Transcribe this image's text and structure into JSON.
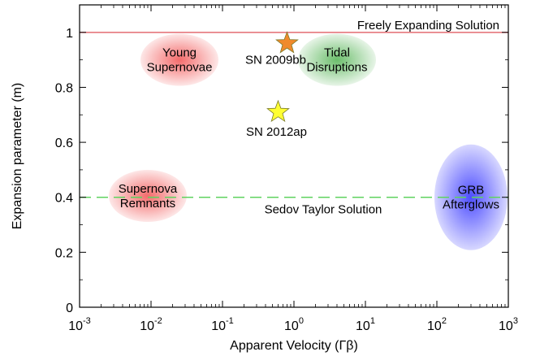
{
  "chart_data": {
    "type": "scatter",
    "xscale": "log",
    "xlim": [
      0.001,
      1000
    ],
    "ylim": [
      0,
      1.1
    ],
    "xlabel": "Apparent Velocity (Γβ)",
    "ylabel": "Expansion parameter (m)",
    "grid": false,
    "x_ticks": [
      {
        "base": "10",
        "exp": "-3",
        "value": 0.001
      },
      {
        "base": "10",
        "exp": "-2",
        "value": 0.01
      },
      {
        "base": "10",
        "exp": "-1",
        "value": 0.1
      },
      {
        "base": "10",
        "exp": "0",
        "value": 1
      },
      {
        "base": "10",
        "exp": "1",
        "value": 10
      },
      {
        "base": "10",
        "exp": "2",
        "value": 100
      },
      {
        "base": "10",
        "exp": "3",
        "value": 1000
      }
    ],
    "y_ticks": [
      "0",
      "0.2",
      "0.4",
      "0.6",
      "0.8",
      "1"
    ],
    "lines": [
      {
        "label": "Freely Expanding Solution",
        "y": 1.0,
        "style": "solid",
        "color": "#e36b72"
      },
      {
        "label": "Sedov Taylor Solution",
        "y": 0.4,
        "style": "dashed",
        "color": "#5fd35f"
      }
    ],
    "points": [
      {
        "label": "SN 2009bb",
        "x": 0.8,
        "y": 0.96,
        "color": "#f08a2c"
      },
      {
        "label": "SN 2012ap",
        "x": 0.6,
        "y": 0.71,
        "color": "#ffff33"
      }
    ],
    "regions": [
      {
        "lines": [
          "Young",
          "Supernovae"
        ],
        "x": 0.025,
        "y": 0.9,
        "color": "#f03a3a"
      },
      {
        "lines": [
          "Tidal",
          "Disruptions"
        ],
        "x": 4,
        "y": 0.9,
        "color": "#3aa83a"
      },
      {
        "lines": [
          "Supernova",
          "Remnants"
        ],
        "x": 0.009,
        "y": 0.405,
        "color": "#f03a3a"
      },
      {
        "lines": [
          "GRB",
          "Afterglows"
        ],
        "x": 300,
        "y": 0.4,
        "color": "#3a3aff"
      }
    ]
  }
}
